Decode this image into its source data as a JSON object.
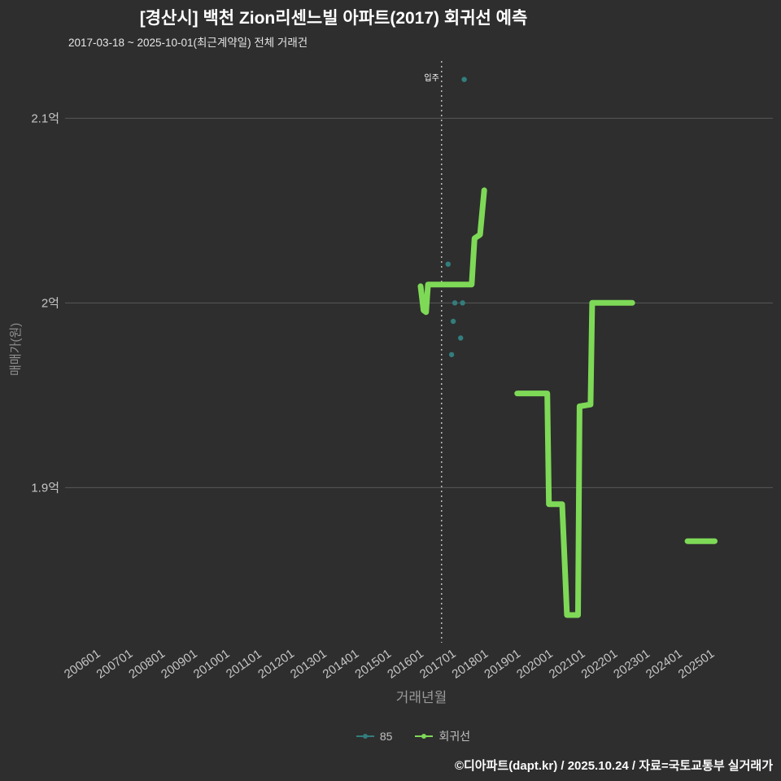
{
  "title": "[경산시] 백천 Zion리센느빌 아파트(2017) 회귀선 예측",
  "subtitle": "2017-03-18 ~ 2025-10-01(최근계약일) 전체 거래건",
  "footer": "©디아파트(dapt.kr) / 2025.10.24 / 자료=국토교통부 실거래가",
  "colors": {
    "background": "#2e2e2e",
    "grid": "#575757",
    "tick": "#c6c6c6",
    "axis_label": "#8f8f8f",
    "title": "#ffffff",
    "scatter": "#337d7d",
    "regression": "#7ed957",
    "refline": "#e0e0e0"
  },
  "legend": {
    "items": [
      {
        "label": "85",
        "color": "#337d7d"
      },
      {
        "label": "회귀선",
        "color": "#7ed957"
      }
    ]
  },
  "chart_data": {
    "type": "line",
    "title": "[경산시] 백천 Zion리센느빌 아파트(2017) 회귀선 예측",
    "xlabel": "거래년월",
    "ylabel": "매매가(원)",
    "xlim": [
      2005.4,
      2027.3
    ],
    "ylim": [
      1.816,
      2.131
    ],
    "grid": "horizontal",
    "legend_position": "bottom",
    "y_ticks": [
      {
        "value": 2.1,
        "label": "2.1억"
      },
      {
        "value": 2.0,
        "label": "2억"
      },
      {
        "value": 1.9,
        "label": "1.9억"
      }
    ],
    "x_ticks": [
      {
        "value": 2006,
        "label": "200601"
      },
      {
        "value": 2007,
        "label": "200701"
      },
      {
        "value": 2008,
        "label": "200801"
      },
      {
        "value": 2009,
        "label": "200901"
      },
      {
        "value": 2010,
        "label": "201001"
      },
      {
        "value": 2011,
        "label": "201101"
      },
      {
        "value": 2012,
        "label": "201201"
      },
      {
        "value": 2013,
        "label": "201301"
      },
      {
        "value": 2014,
        "label": "201401"
      },
      {
        "value": 2015,
        "label": "201501"
      },
      {
        "value": 2016,
        "label": "201601"
      },
      {
        "value": 2017,
        "label": "201701"
      },
      {
        "value": 2018,
        "label": "201801"
      },
      {
        "value": 2019,
        "label": "201901"
      },
      {
        "value": 2020,
        "label": "202001"
      },
      {
        "value": 2021,
        "label": "202101"
      },
      {
        "value": 2022,
        "label": "202201"
      },
      {
        "value": 2023,
        "label": "202301"
      },
      {
        "value": 2024,
        "label": "202401"
      },
      {
        "value": 2025,
        "label": "202501"
      }
    ],
    "reference_line": {
      "x": 2017.05,
      "label": "입주"
    },
    "series": [
      {
        "name": "85",
        "type": "scatter",
        "color": "#337d7d",
        "points": [
          [
            2017.75,
            2.121
          ],
          [
            2017.25,
            2.021
          ],
          [
            2017.46,
            2.0
          ],
          [
            2017.7,
            2.0
          ],
          [
            2017.41,
            1.99
          ],
          [
            2017.64,
            1.981
          ],
          [
            2017.36,
            1.972
          ]
        ]
      },
      {
        "name": "회귀선",
        "type": "line",
        "color": "#7ed957",
        "width": 7,
        "segments": [
          [
            [
              2016.4,
              2.009
            ],
            [
              2016.49,
              1.996
            ],
            [
              2016.57,
              1.995
            ],
            [
              2016.63,
              2.01
            ],
            [
              2017.98,
              2.01
            ],
            [
              2018.07,
              2.035
            ],
            [
              2018.24,
              2.037
            ],
            [
              2018.37,
              2.061
            ]
          ],
          [
            [
              2019.39,
              1.951
            ],
            [
              2020.32,
              1.951
            ],
            [
              2020.37,
              1.891
            ],
            [
              2020.78,
              1.891
            ],
            [
              2020.93,
              1.831
            ],
            [
              2021.27,
              1.831
            ],
            [
              2021.32,
              1.944
            ],
            [
              2021.66,
              1.945
            ],
            [
              2021.71,
              2.0
            ],
            [
              2022.95,
              2.0
            ]
          ],
          [
            [
              2024.66,
              1.871
            ],
            [
              2025.5,
              1.871
            ]
          ]
        ]
      }
    ]
  }
}
